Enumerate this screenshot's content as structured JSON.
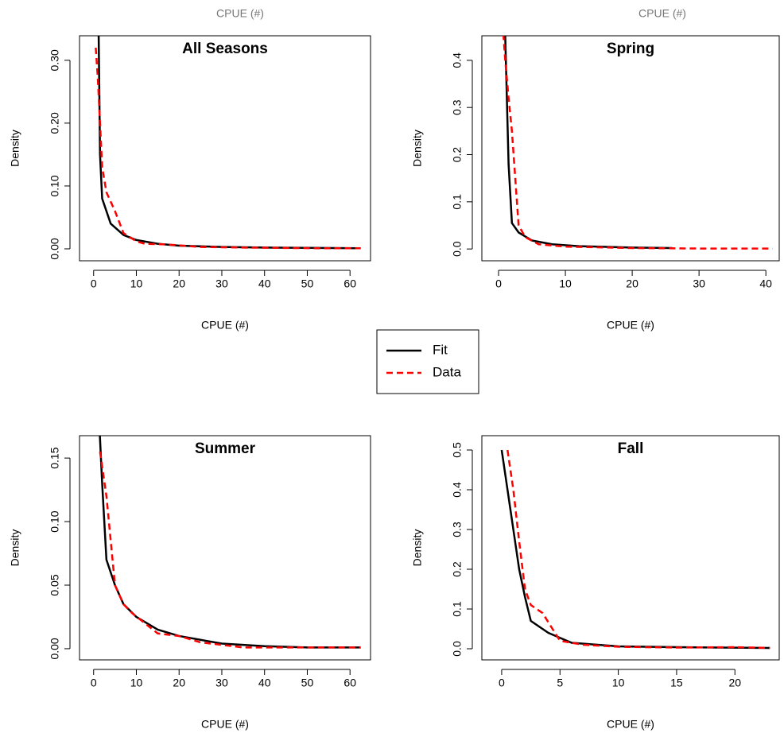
{
  "cropped_labels": [
    "CPUE (#)",
    "CPUE (#)"
  ],
  "chart_data": [
    {
      "type": "line",
      "title": "All Seasons",
      "x_label": "CPUE (#)",
      "y_label": "Density",
      "xlim": [
        -3.3,
        64.8
      ],
      "ylim": [
        -0.019,
        0.339
      ],
      "xticks": [
        0,
        10,
        20,
        30,
        40,
        50,
        60
      ],
      "yticks": [
        {
          "value": 0,
          "label": "0.00"
        },
        {
          "value": 0.1,
          "label": "0.10"
        },
        {
          "value": 0.2,
          "label": "0.20"
        },
        {
          "value": 0.3,
          "label": "0.30"
        }
      ],
      "series": [
        {
          "name": "Fit",
          "color": "#000000",
          "dash": "solid",
          "x": [
            1,
            1.5,
            2,
            4,
            7,
            10,
            15,
            20,
            30,
            40,
            50,
            62.5
          ],
          "values": [
            0.45,
            0.15,
            0.08,
            0.04,
            0.022,
            0.014,
            0.008,
            0.005,
            0.003,
            0.002,
            0.0015,
            0.001
          ]
        },
        {
          "name": "Data",
          "color": "#ff0000",
          "dash": "dashed",
          "x": [
            0.5,
            1,
            1.5,
            2,
            3,
            5,
            7,
            10,
            12,
            17,
            25,
            35,
            52,
            55,
            62.5
          ],
          "values": [
            0.32,
            0.27,
            0.2,
            0.13,
            0.09,
            0.06,
            0.025,
            0.012,
            0.008,
            0.007,
            0.003,
            0.002,
            0.001,
            0.001,
            0.001
          ]
        }
      ]
    },
    {
      "type": "line",
      "title": "Spring",
      "x_label": "CPUE (#)",
      "y_label": "Density",
      "xlim": [
        -2.5,
        42
      ],
      "ylim": [
        -0.025,
        0.452
      ],
      "xticks": [
        0,
        10,
        20,
        30,
        40
      ],
      "yticks": [
        {
          "value": 0,
          "label": "0.0"
        },
        {
          "value": 0.1,
          "label": "0.1"
        },
        {
          "value": 0.2,
          "label": "0.2"
        },
        {
          "value": 0.3,
          "label": "0.3"
        },
        {
          "value": 0.4,
          "label": "0.4"
        }
      ],
      "series": [
        {
          "name": "Fit",
          "color": "#000000",
          "dash": "solid",
          "x": [
            0.5,
            1,
            1.5,
            2,
            3,
            5,
            8,
            12,
            20,
            26
          ],
          "values": [
            0.6,
            0.45,
            0.18,
            0.055,
            0.035,
            0.018,
            0.01,
            0.006,
            0.003,
            0.002
          ]
        },
        {
          "name": "Data",
          "color": "#ff0000",
          "dash": "dashed",
          "x": [
            0.5,
            1,
            1.5,
            2,
            2.5,
            3,
            4,
            6,
            10,
            20,
            30,
            41
          ],
          "values": [
            0.5,
            0.4,
            0.32,
            0.25,
            0.15,
            0.05,
            0.025,
            0.01,
            0.005,
            0.002,
            0.001,
            0.001
          ]
        }
      ]
    },
    {
      "type": "line",
      "title": "Summer",
      "x_label": "CPUE (#)",
      "y_label": "Density",
      "xlim": [
        -3.3,
        64.8
      ],
      "ylim": [
        -0.0088,
        0.1676
      ],
      "xticks": [
        0,
        10,
        20,
        30,
        40,
        50,
        60
      ],
      "yticks": [
        {
          "value": 0,
          "label": "0.00"
        },
        {
          "value": 0.05,
          "label": "0.05"
        },
        {
          "value": 0.1,
          "label": "0.10"
        },
        {
          "value": 0.15,
          "label": "0.15"
        }
      ],
      "series": [
        {
          "name": "Fit",
          "color": "#000000",
          "dash": "solid",
          "x": [
            1,
            2,
            3,
            5,
            7,
            10,
            15,
            20,
            30,
            40,
            50,
            62.5
          ],
          "values": [
            0.2,
            0.13,
            0.07,
            0.05,
            0.035,
            0.025,
            0.015,
            0.01,
            0.004,
            0.002,
            0.001,
            0.001
          ]
        },
        {
          "name": "Data",
          "color": "#ff0000",
          "dash": "dashed",
          "x": [
            1.5,
            3,
            5,
            7,
            9,
            12,
            15,
            20,
            25,
            30,
            35,
            40,
            62.5
          ],
          "values": [
            0.155,
            0.12,
            0.05,
            0.035,
            0.028,
            0.02,
            0.012,
            0.01,
            0.005,
            0.003,
            0.001,
            0.001,
            0.001
          ]
        }
      ]
    },
    {
      "type": "line",
      "title": "Fall",
      "x_label": "CPUE (#)",
      "y_label": "Density",
      "xlim": [
        -1.7,
        23.8
      ],
      "ylim": [
        -0.028,
        0.536
      ],
      "xticks": [
        0,
        5,
        10,
        15,
        20
      ],
      "yticks": [
        {
          "value": 0,
          "label": "0.0"
        },
        {
          "value": 0.1,
          "label": "0.1"
        },
        {
          "value": 0.2,
          "label": "0.2"
        },
        {
          "value": 0.3,
          "label": "0.3"
        },
        {
          "value": 0.4,
          "label": "0.4"
        },
        {
          "value": 0.5,
          "label": "0.5"
        }
      ],
      "series": [
        {
          "name": "Fit",
          "color": "#000000",
          "dash": "solid",
          "x": [
            0,
            0.5,
            1,
            1.5,
            2,
            2.5,
            4,
            6,
            10,
            15,
            23
          ],
          "values": [
            0.5,
            0.4,
            0.3,
            0.2,
            0.13,
            0.07,
            0.04,
            0.015,
            0.006,
            0.004,
            0.002
          ]
        },
        {
          "name": "Data",
          "color": "#ff0000",
          "dash": "dashed",
          "x": [
            0.5,
            1,
            1.5,
            2,
            2.5,
            3.5,
            5,
            7,
            10,
            15,
            20,
            23
          ],
          "values": [
            0.5,
            0.4,
            0.27,
            0.15,
            0.11,
            0.09,
            0.02,
            0.01,
            0.005,
            0.003,
            0.004,
            0.002
          ]
        }
      ]
    }
  ]
}
